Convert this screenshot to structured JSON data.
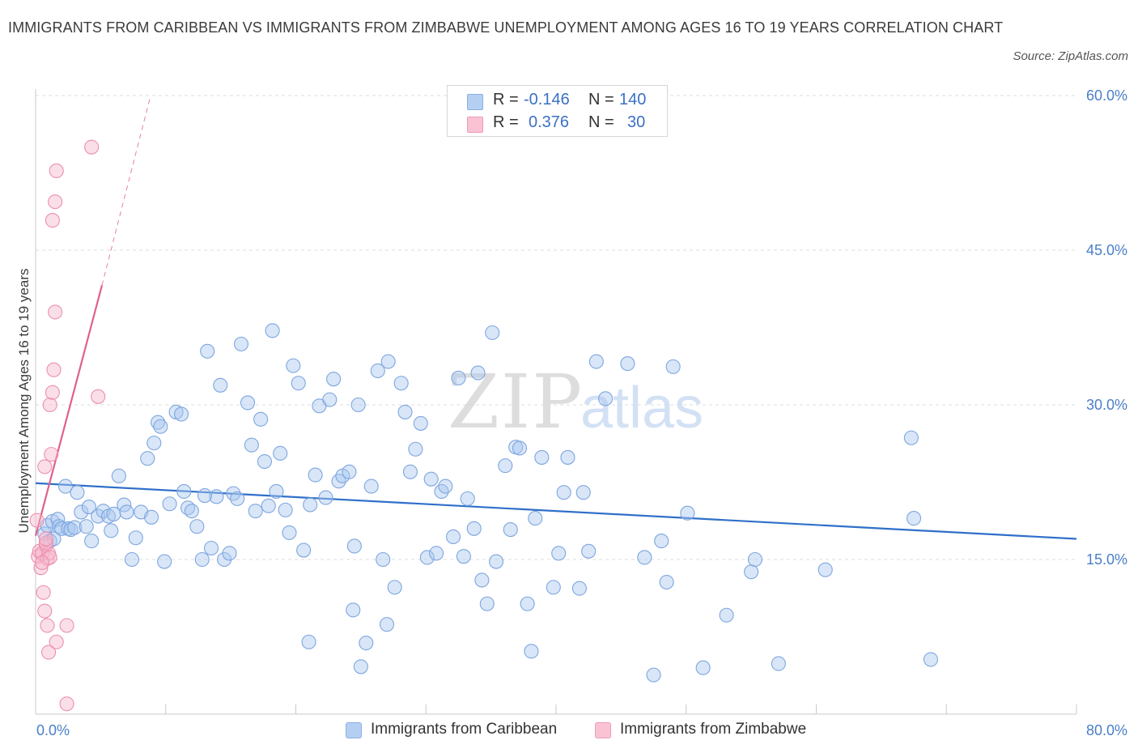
{
  "chart_data": {
    "type": "scatter",
    "title": "IMMIGRANTS FROM CARIBBEAN VS IMMIGRANTS FROM ZIMBABWE UNEMPLOYMENT AMONG AGES 16 TO 19 YEARS CORRELATION CHART",
    "source": "Source: ZipAtlas.com",
    "ylabel": "Unemployment Among Ages 16 to 19 years",
    "xlim": [
      0,
      80
    ],
    "ylim": [
      0,
      60
    ],
    "x_tick_labels": [
      "0.0%",
      "80.0%"
    ],
    "y_ticks": [
      {
        "value": 60,
        "label": "60.0%"
      },
      {
        "value": 45,
        "label": "45.0%"
      },
      {
        "value": 30,
        "label": "30.0%"
      },
      {
        "value": 15,
        "label": "15.0%"
      }
    ],
    "watermark": "ZIPatlas",
    "legend": {
      "rows": [
        {
          "r_label": "R =",
          "r_value": "-0.146",
          "n_label": "N =",
          "n_value": "140"
        },
        {
          "r_label": "R =",
          "r_value": "0.376",
          "n_label": "N =",
          "n_value": "30"
        }
      ]
    },
    "series": [
      {
        "name": "Immigrants from Caribbean",
        "color": "#a9c7ef",
        "stroke": "#7ea6df",
        "trend": {
          "x": [
            0,
            80
          ],
          "y": [
            22.4,
            17.0
          ],
          "color": "#2f6fc9"
        },
        "points": [
          [
            0.7,
            17.5
          ],
          [
            0.9,
            18.3
          ],
          [
            1.1,
            16.8
          ],
          [
            1.3,
            18.7
          ],
          [
            1.4,
            17.0
          ],
          [
            1.7,
            18.9
          ],
          [
            1.8,
            18.2
          ],
          [
            2.0,
            18.0
          ],
          [
            2.3,
            22.1
          ],
          [
            2.5,
            18.0
          ],
          [
            2.7,
            17.9
          ],
          [
            3.0,
            18.1
          ],
          [
            3.2,
            21.5
          ],
          [
            3.5,
            19.6
          ],
          [
            3.9,
            18.2
          ],
          [
            4.1,
            20.1
          ],
          [
            4.3,
            16.8
          ],
          [
            4.8,
            19.2
          ],
          [
            5.2,
            19.7
          ],
          [
            5.6,
            19.2
          ],
          [
            5.8,
            17.8
          ],
          [
            6.0,
            19.4
          ],
          [
            6.4,
            23.1
          ],
          [
            6.8,
            20.3
          ],
          [
            7.0,
            19.6
          ],
          [
            7.4,
            15.0
          ],
          [
            7.7,
            17.1
          ],
          [
            8.1,
            19.6
          ],
          [
            8.6,
            24.8
          ],
          [
            8.9,
            19.1
          ],
          [
            9.1,
            26.3
          ],
          [
            9.4,
            28.3
          ],
          [
            9.6,
            27.9
          ],
          [
            9.9,
            14.8
          ],
          [
            10.3,
            20.4
          ],
          [
            10.8,
            29.3
          ],
          [
            11.2,
            29.1
          ],
          [
            11.4,
            21.6
          ],
          [
            11.7,
            20.0
          ],
          [
            12.0,
            19.7
          ],
          [
            12.4,
            18.2
          ],
          [
            12.8,
            15.0
          ],
          [
            13.2,
            35.2
          ],
          [
            13.5,
            16.1
          ],
          [
            13.9,
            21.1
          ],
          [
            14.2,
            31.9
          ],
          [
            14.5,
            15.0
          ],
          [
            14.9,
            15.6
          ],
          [
            15.2,
            21.4
          ],
          [
            15.5,
            20.9
          ],
          [
            15.8,
            35.9
          ],
          [
            16.3,
            30.2
          ],
          [
            16.6,
            26.1
          ],
          [
            16.9,
            19.7
          ],
          [
            17.3,
            28.6
          ],
          [
            17.6,
            24.5
          ],
          [
            17.9,
            20.2
          ],
          [
            18.2,
            37.2
          ],
          [
            18.5,
            21.6
          ],
          [
            18.8,
            25.3
          ],
          [
            19.2,
            19.8
          ],
          [
            19.5,
            17.6
          ],
          [
            19.8,
            33.8
          ],
          [
            20.2,
            32.1
          ],
          [
            20.6,
            15.9
          ],
          [
            21.1,
            20.3
          ],
          [
            21.5,
            23.2
          ],
          [
            21.8,
            29.9
          ],
          [
            22.3,
            21.0
          ],
          [
            22.6,
            30.5
          ],
          [
            22.9,
            32.5
          ],
          [
            23.3,
            22.6
          ],
          [
            23.6,
            23.1
          ],
          [
            24.1,
            23.5
          ],
          [
            24.5,
            16.3
          ],
          [
            24.8,
            30.0
          ],
          [
            24.4,
            10.1
          ],
          [
            25.4,
            6.9
          ],
          [
            25.8,
            22.1
          ],
          [
            26.3,
            33.3
          ],
          [
            26.7,
            15.0
          ],
          [
            27.1,
            34.2
          ],
          [
            27.6,
            12.3
          ],
          [
            28.1,
            32.1
          ],
          [
            28.4,
            29.3
          ],
          [
            28.8,
            23.5
          ],
          [
            29.2,
            25.7
          ],
          [
            29.6,
            28.2
          ],
          [
            30.1,
            15.2
          ],
          [
            30.4,
            22.8
          ],
          [
            30.8,
            15.6
          ],
          [
            31.2,
            21.6
          ],
          [
            31.5,
            22.1
          ],
          [
            32.1,
            17.2
          ],
          [
            32.5,
            32.6
          ],
          [
            32.9,
            15.3
          ],
          [
            33.2,
            20.9
          ],
          [
            33.7,
            18.0
          ],
          [
            34.0,
            33.1
          ],
          [
            34.3,
            13.0
          ],
          [
            34.7,
            10.7
          ],
          [
            35.1,
            37.0
          ],
          [
            35.4,
            14.8
          ],
          [
            36.1,
            24.1
          ],
          [
            36.5,
            17.9
          ],
          [
            36.9,
            25.9
          ],
          [
            37.2,
            25.8
          ],
          [
            37.8,
            10.7
          ],
          [
            38.1,
            6.1
          ],
          [
            38.4,
            19.0
          ],
          [
            38.9,
            24.9
          ],
          [
            39.8,
            12.3
          ],
          [
            40.2,
            15.6
          ],
          [
            40.6,
            21.5
          ],
          [
            40.9,
            24.9
          ],
          [
            41.8,
            12.2
          ],
          [
            42.1,
            21.5
          ],
          [
            42.5,
            15.8
          ],
          [
            43.1,
            34.2
          ],
          [
            43.8,
            30.6
          ],
          [
            45.5,
            34.0
          ],
          [
            46.8,
            15.2
          ],
          [
            47.5,
            3.8
          ],
          [
            48.1,
            16.8
          ],
          [
            48.5,
            12.8
          ],
          [
            49.0,
            33.7
          ],
          [
            50.1,
            19.5
          ],
          [
            51.3,
            4.5
          ],
          [
            53.1,
            9.6
          ],
          [
            55.0,
            13.8
          ],
          [
            55.3,
            15.0
          ],
          [
            57.1,
            4.9
          ],
          [
            60.7,
            14.0
          ],
          [
            67.3,
            26.8
          ],
          [
            67.5,
            19.0
          ],
          [
            68.8,
            5.3
          ],
          [
            27.0,
            8.7
          ],
          [
            25.0,
            4.6
          ],
          [
            21.0,
            7.0
          ],
          [
            13.0,
            21.2
          ]
        ]
      },
      {
        "name": "Immigrants from Zimbabwe",
        "color": "#f7b8cb",
        "stroke": "#ec8fae",
        "trend": {
          "x": [
            0,
            5.1
          ],
          "y": [
            17.3,
            41.6
          ],
          "dashed_to": [
            8.8,
            59.8
          ],
          "color": "#e0608f"
        },
        "points": [
          [
            0.1,
            18.8
          ],
          [
            0.2,
            15.3
          ],
          [
            0.3,
            15.8
          ],
          [
            0.4,
            14.2
          ],
          [
            0.5,
            15.6
          ],
          [
            0.6,
            11.8
          ],
          [
            0.7,
            10.0
          ],
          [
            0.8,
            16.4
          ],
          [
            0.9,
            15.1
          ],
          [
            1.0,
            15.6
          ],
          [
            0.9,
            8.6
          ],
          [
            1.0,
            6.0
          ],
          [
            1.2,
            25.2
          ],
          [
            1.1,
            30.0
          ],
          [
            1.3,
            31.2
          ],
          [
            1.4,
            33.4
          ],
          [
            1.5,
            39.0
          ],
          [
            1.6,
            7.0
          ],
          [
            1.3,
            47.9
          ],
          [
            1.5,
            49.7
          ],
          [
            1.6,
            52.7
          ],
          [
            0.7,
            24.0
          ],
          [
            0.8,
            16.6
          ],
          [
            1.1,
            15.2
          ],
          [
            2.4,
            1.0
          ],
          [
            2.4,
            8.6
          ],
          [
            4.3,
            55.0
          ],
          [
            4.8,
            30.8
          ],
          [
            0.5,
            14.7
          ],
          [
            0.8,
            17.0
          ]
        ]
      }
    ]
  }
}
